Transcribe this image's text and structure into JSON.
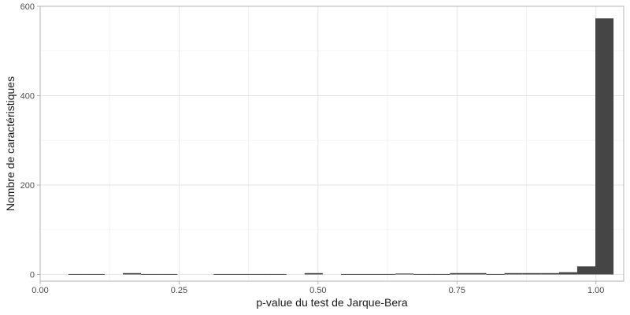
{
  "chart_data": {
    "type": "bar",
    "xlabel": "p-value du test de Jarque-Bera",
    "ylabel": "Nombre de caractéristiques",
    "xlim": [
      0,
      1.05
    ],
    "ylim": [
      -15,
      600
    ],
    "x_ticks": [
      0.0,
      0.25,
      0.5,
      0.75,
      1.0
    ],
    "x_tick_labels": [
      "0.00",
      "0.25",
      "0.50",
      "0.75",
      "1.00"
    ],
    "y_ticks": [
      0,
      200,
      400,
      600
    ],
    "y_tick_labels": [
      "0",
      "200",
      "400",
      "600"
    ],
    "grid": true,
    "bin_width": 0.0327,
    "bins": [
      {
        "x_start": 0.0507,
        "x_end": 0.0834,
        "value": 1
      },
      {
        "x_start": 0.0834,
        "x_end": 0.1161,
        "value": 1
      },
      {
        "x_start": 0.1488,
        "x_end": 0.1815,
        "value": 3
      },
      {
        "x_start": 0.1815,
        "x_end": 0.2142,
        "value": 1
      },
      {
        "x_start": 0.2142,
        "x_end": 0.2469,
        "value": 1
      },
      {
        "x_start": 0.3123,
        "x_end": 0.345,
        "value": 1
      },
      {
        "x_start": 0.345,
        "x_end": 0.3777,
        "value": 1
      },
      {
        "x_start": 0.3777,
        "x_end": 0.4104,
        "value": 1
      },
      {
        "x_start": 0.4104,
        "x_end": 0.4431,
        "value": 1
      },
      {
        "x_start": 0.4758,
        "x_end": 0.5085,
        "value": 3
      },
      {
        "x_start": 0.5412,
        "x_end": 0.5739,
        "value": 1
      },
      {
        "x_start": 0.5739,
        "x_end": 0.6066,
        "value": 1
      },
      {
        "x_start": 0.6066,
        "x_end": 0.6393,
        "value": 1
      },
      {
        "x_start": 0.6393,
        "x_end": 0.672,
        "value": 2
      },
      {
        "x_start": 0.672,
        "x_end": 0.7047,
        "value": 1
      },
      {
        "x_start": 0.7047,
        "x_end": 0.7374,
        "value": 1
      },
      {
        "x_start": 0.7374,
        "x_end": 0.7701,
        "value": 3
      },
      {
        "x_start": 0.7701,
        "x_end": 0.8028,
        "value": 3
      },
      {
        "x_start": 0.8028,
        "x_end": 0.8355,
        "value": 1
      },
      {
        "x_start": 0.8355,
        "x_end": 0.8682,
        "value": 3
      },
      {
        "x_start": 0.8682,
        "x_end": 0.9009,
        "value": 3
      },
      {
        "x_start": 0.9009,
        "x_end": 0.9336,
        "value": 3
      },
      {
        "x_start": 0.9336,
        "x_end": 0.9663,
        "value": 5
      },
      {
        "x_start": 0.9663,
        "x_end": 0.999,
        "value": 18
      },
      {
        "x_start": 0.999,
        "x_end": 1.0317,
        "value": 573
      }
    ],
    "colors": {
      "bar": "#454545",
      "panel_border": "#b3b3b3",
      "grid_major": "#e5e5e5",
      "grid_minor": "#f2f2f2",
      "tick": "#b3b3b3"
    }
  }
}
